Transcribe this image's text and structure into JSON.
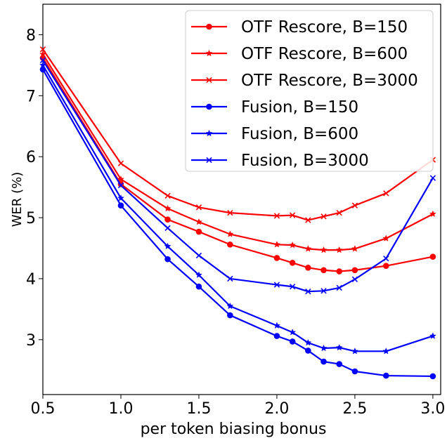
{
  "chart_data": {
    "type": "line",
    "title": "",
    "xlabel": "per token biasing bonus",
    "ylabel": "WER (%)",
    "xlim": [
      0.5,
      3.05
    ],
    "ylim": [
      2.1,
      8.5
    ],
    "xticks": [
      "0.5",
      "1.0",
      "1.5",
      "2.0",
      "2.5",
      "3.0"
    ],
    "yticks": [
      "3",
      "4",
      "5",
      "6",
      "7",
      "8"
    ],
    "grid": false,
    "legend_position": "top-right",
    "x": [
      0.5,
      1.0,
      1.3,
      1.5,
      1.7,
      2.0,
      2.1,
      2.2,
      2.3,
      2.4,
      2.5,
      2.7,
      3.0
    ],
    "series": [
      {
        "name": "OTF Rescore, B=150",
        "color": "#ff0000",
        "marker": "circle",
        "values": [
          7.62,
          5.55,
          4.97,
          4.77,
          4.56,
          4.34,
          4.26,
          4.18,
          4.14,
          4.12,
          4.14,
          4.21,
          4.36
        ]
      },
      {
        "name": "OTF Rescore, B=600",
        "color": "#ff0000",
        "marker": "star",
        "values": [
          7.68,
          5.63,
          5.15,
          4.93,
          4.73,
          4.56,
          4.55,
          4.49,
          4.47,
          4.47,
          4.49,
          4.66,
          5.06
        ]
      },
      {
        "name": "OTF Rescore, B=3000",
        "color": "#ff0000",
        "marker": "x",
        "values": [
          7.76,
          5.89,
          5.36,
          5.17,
          5.08,
          5.03,
          5.04,
          4.96,
          5.02,
          5.08,
          5.2,
          5.4,
          5.95
        ]
      },
      {
        "name": "Fusion, B=150",
        "color": "#0000ff",
        "marker": "circle",
        "values": [
          7.43,
          5.2,
          4.32,
          3.87,
          3.4,
          3.06,
          2.97,
          2.82,
          2.64,
          2.6,
          2.48,
          2.41,
          2.4
        ]
      },
      {
        "name": "Fusion, B=600",
        "color": "#0000ff",
        "marker": "star",
        "values": [
          7.5,
          5.32,
          4.53,
          4.06,
          3.55,
          3.23,
          3.12,
          2.95,
          2.86,
          2.87,
          2.81,
          2.81,
          3.06
        ]
      },
      {
        "name": "Fusion, B=3000",
        "color": "#0000ff",
        "marker": "x",
        "values": [
          7.58,
          5.53,
          4.83,
          4.38,
          4.0,
          3.9,
          3.87,
          3.79,
          3.8,
          3.85,
          3.99,
          4.33,
          5.65
        ]
      }
    ]
  }
}
